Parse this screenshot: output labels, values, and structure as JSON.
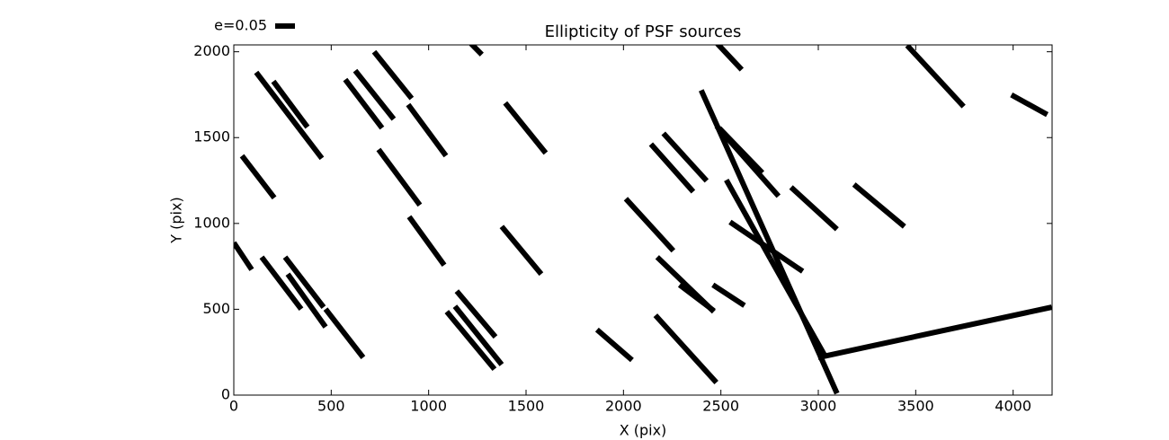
{
  "chart_data": {
    "type": "whisker",
    "title": "Ellipticity of PSF sources",
    "x_label": "X (pix)",
    "y_label": "Y (pix)",
    "legend": {
      "label": "e=0.05",
      "position": "upper left"
    },
    "color": "#000000",
    "xlim": [
      0,
      4200
    ],
    "ylim": [
      0,
      2040
    ],
    "xticks": [
      0,
      500,
      1000,
      1500,
      2000,
      2500,
      3000,
      3500,
      4000
    ],
    "yticks": [
      0,
      500,
      1000,
      1500,
      2000
    ],
    "segments": [
      {
        "x": [
          115,
          452
        ],
        "y": [
          1880,
          1379
        ]
      },
      {
        "x": [
          203,
          378
        ],
        "y": [
          1828,
          1561
        ]
      },
      {
        "x": [
          572,
          761
        ],
        "y": [
          1838,
          1556
        ]
      },
      {
        "x": [
          623,
          821
        ],
        "y": [
          1890,
          1608
        ]
      },
      {
        "x": [
          720,
          913
        ],
        "y": [
          2000,
          1728
        ]
      },
      {
        "x": [
          895,
          1089
        ],
        "y": [
          1692,
          1394
        ]
      },
      {
        "x": [
          1218,
          1273
        ],
        "y": [
          2047,
          1984
        ]
      },
      {
        "x": [
          1393,
          1601
        ],
        "y": [
          1702,
          1410
        ]
      },
      {
        "x": [
          42,
          208
        ],
        "y": [
          1394,
          1149
        ]
      },
      {
        "x": [
          743,
          955
        ],
        "y": [
          1431,
          1107
        ]
      },
      {
        "x": [
          900,
          1080
        ],
        "y": [
          1039,
          757
        ]
      },
      {
        "x": [
          1375,
          1578
        ],
        "y": [
          982,
          705
        ]
      },
      {
        "x": [
          0,
          92
        ],
        "y": [
          888,
          731
        ]
      },
      {
        "x": [
          143,
          346
        ],
        "y": [
          804,
          501
        ]
      },
      {
        "x": [
          263,
          461
        ],
        "y": [
          804,
          512
        ]
      },
      {
        "x": [
          277,
          471
        ],
        "y": [
          705,
          397
        ]
      },
      {
        "x": [
          471,
          664
        ],
        "y": [
          501,
          219
        ]
      },
      {
        "x": [
          1093,
          1338
        ],
        "y": [
          486,
          151
        ]
      },
      {
        "x": [
          1135,
          1375
        ],
        "y": [
          517,
          178
        ]
      },
      {
        "x": [
          1144,
          1343
        ],
        "y": [
          606,
          339
        ]
      },
      {
        "x": [
          1864,
          2044
        ],
        "y": [
          381,
          204
        ]
      },
      {
        "x": [
          2164,
          2477
        ],
        "y": [
          465,
          73
        ]
      },
      {
        "x": [
          2141,
          2358
        ],
        "y": [
          1462,
          1185
        ]
      },
      {
        "x": [
          2205,
          2427
        ],
        "y": [
          1525,
          1248
        ]
      },
      {
        "x": [
          2012,
          2256
        ],
        "y": [
          1144,
          841
        ]
      },
      {
        "x": [
          2173,
          2464
        ],
        "y": [
          804,
          486
        ]
      },
      {
        "x": [
          2288,
          2464
        ],
        "y": [
          642,
          491
        ]
      },
      {
        "x": [
          2459,
          2621
        ],
        "y": [
          642,
          522
        ]
      },
      {
        "x": [
          2482,
          2607
        ],
        "y": [
          2047,
          1896
        ]
      },
      {
        "x": [
          2399,
          3096
        ],
        "y": [
          1776,
          10
        ]
      },
      {
        "x": [
          2478,
          2796
        ],
        "y": [
          1567,
          1159
        ]
      },
      {
        "x": [
          2491,
          2713
        ],
        "y": [
          1556,
          1295
        ]
      },
      {
        "x": [
          2528,
          2754
        ],
        "y": [
          1253,
          794
        ]
      },
      {
        "x": [
          2547,
          2920
        ],
        "y": [
          1008,
          721
        ]
      },
      {
        "x": [
          2860,
          3096
        ],
        "y": [
          1211,
          966
        ]
      },
      {
        "x": [
          3183,
          3442
        ],
        "y": [
          1227,
          982
        ]
      },
      {
        "x": [
          3456,
          3746
        ],
        "y": [
          2037,
          1681
        ]
      },
      {
        "x": [
          3991,
          4175
        ],
        "y": [
          1749,
          1634
        ]
      },
      {
        "x": [
          2999,
          4198
        ],
        "y": [
          219,
          512
        ]
      },
      {
        "x": [
          2754,
          3031
        ],
        "y": [
          794,
          235
        ]
      }
    ]
  }
}
